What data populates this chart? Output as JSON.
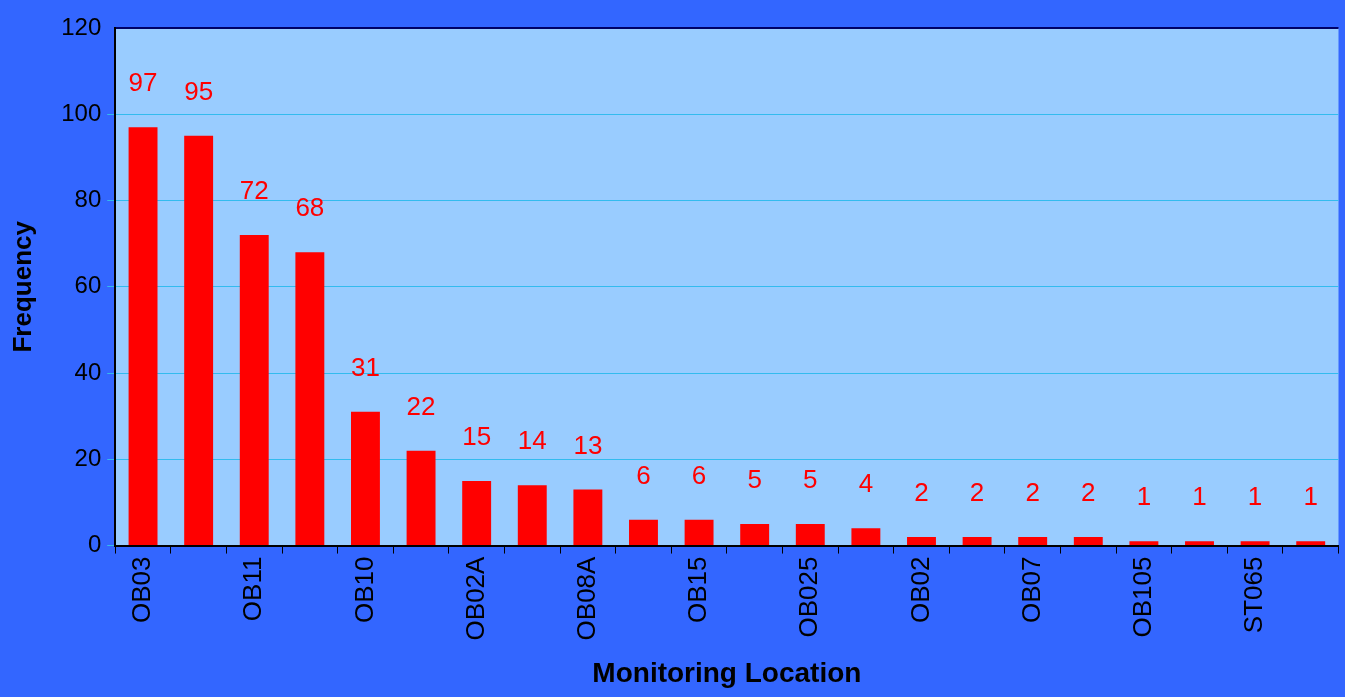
{
  "chart_data": {
    "type": "bar",
    "xlabel": "Monitoring Location",
    "ylabel": "Frequency",
    "categories": [
      "OB03",
      null,
      "OB11",
      null,
      "OB10",
      null,
      "OB02A",
      null,
      "OB08A",
      null,
      "OB15",
      null,
      "OB025",
      null,
      "OB02",
      null,
      "OB07",
      null,
      "OB105",
      null,
      "ST065",
      null
    ],
    "values": [
      97,
      95,
      72,
      68,
      31,
      22,
      15,
      14,
      13,
      6,
      6,
      5,
      5,
      4,
      2,
      2,
      2,
      2,
      1,
      1,
      1,
      1
    ],
    "color": "#ff0000",
    "ylim": [
      0,
      120
    ],
    "yticks": [
      0,
      20,
      40,
      60,
      80,
      100,
      120
    ],
    "grid": true,
    "data_labels": true
  }
}
